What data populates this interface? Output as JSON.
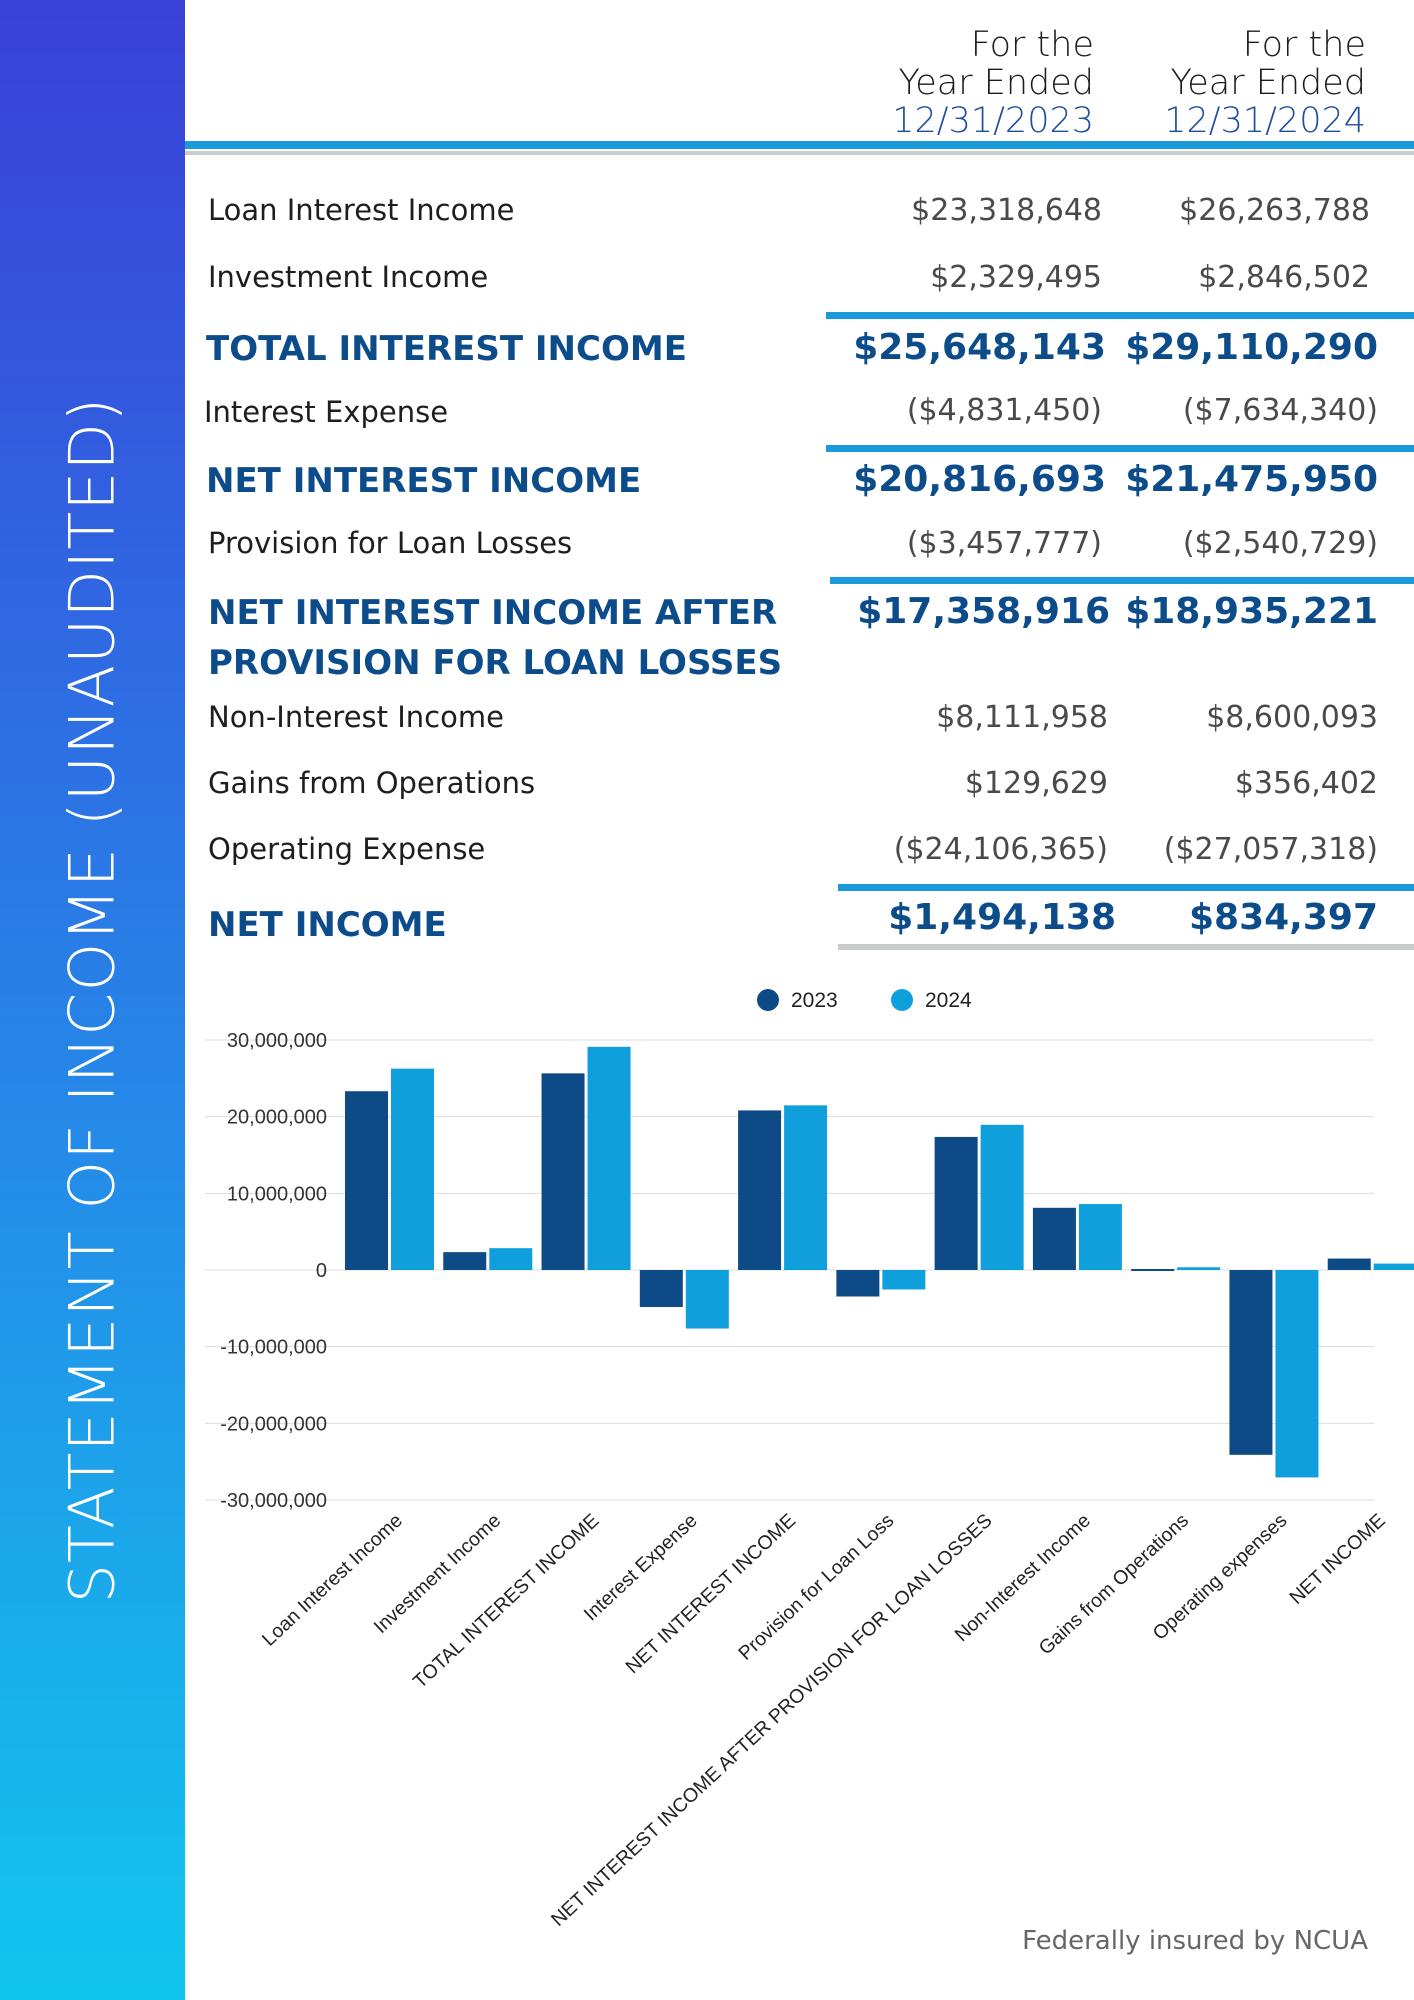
{
  "sidebar": {
    "title": "STATEMENT OF INCOME (UNAUDITED)"
  },
  "columns": [
    {
      "line1": "For the",
      "line2": "Year Ended",
      "date": "12/31/2023"
    },
    {
      "line1": "For the",
      "line2": "Year Ended",
      "date": "12/31/2024"
    }
  ],
  "rows": [
    {
      "label": "Loan Interest Income",
      "v2023": "$23,318,648",
      "v2024": "$26,263,788"
    },
    {
      "label": "Investment Income",
      "v2023": "$2,329,495",
      "v2024": "$2,846,502"
    },
    {
      "label": "TOTAL INTEREST INCOME",
      "v2023": "$25,648,143",
      "v2024": "$29,110,290"
    },
    {
      "label": "Interest Expense",
      "v2023": "($4,831,450)",
      "v2024": "($7,634,340)"
    },
    {
      "label": "NET INTEREST INCOME",
      "v2023": "$20,816,693",
      "v2024": "$21,475,950"
    },
    {
      "label": "Provision for Loan Losses",
      "v2023": "($3,457,777)",
      "v2024": "($2,540,729)"
    },
    {
      "label_line1": "NET INTEREST INCOME AFTER",
      "label_line2": "PROVISION FOR LOAN LOSSES",
      "v2023": "$17,358,916",
      "v2024": "$18,935,221"
    },
    {
      "label": "Non-Interest Income",
      "v2023": "$8,111,958",
      "v2024": "$8,600,093"
    },
    {
      "label": "Gains from Operations",
      "v2023": "$129,629",
      "v2024": "$356,402"
    },
    {
      "label": "Operating Expense",
      "v2023": "($24,106,365)",
      "v2024": "($27,057,318)"
    },
    {
      "label": "NET INCOME",
      "v2023": "$1,494,138",
      "v2024": "$834,397"
    }
  ],
  "colors": {
    "series2023": "#0d4a86",
    "series2024": "#0e9fdc",
    "accent": "#1a9ad8",
    "heading": "#0c4c8b"
  },
  "chart_data": {
    "type": "bar",
    "categories": [
      "Loan Interest Income",
      "Investment Income",
      "TOTAL INTEREST INCOME",
      "Interest Expense",
      "NET INTEREST INCOME",
      "Provision for Loan Loss",
      "NET INTEREST INCOME AFTER PROVISION FOR LOAN LOSSES",
      "Non-Interest Income",
      "Gains from Operations",
      "Operating expenses",
      "NET INCOME"
    ],
    "series": [
      {
        "name": "2023",
        "values": [
          23318648,
          2329495,
          25648143,
          -4831450,
          20816693,
          -3457777,
          17358916,
          8111958,
          129629,
          -24106365,
          1494138
        ]
      },
      {
        "name": "2024",
        "values": [
          26263788,
          2846502,
          29110290,
          -7634340,
          21475950,
          -2540729,
          18935221,
          8600093,
          356402,
          -27057318,
          834397
        ]
      }
    ],
    "ylim": [
      -30000000,
      30000000
    ],
    "yticks": [
      "30,000,000",
      "20,000,000",
      "10,000,000",
      "0",
      "-10,000,000",
      "-20,000,000",
      "-30,000,000"
    ],
    "grid": true,
    "legend": "top-center"
  },
  "footer": {
    "text": "Federally insured by NCUA"
  }
}
